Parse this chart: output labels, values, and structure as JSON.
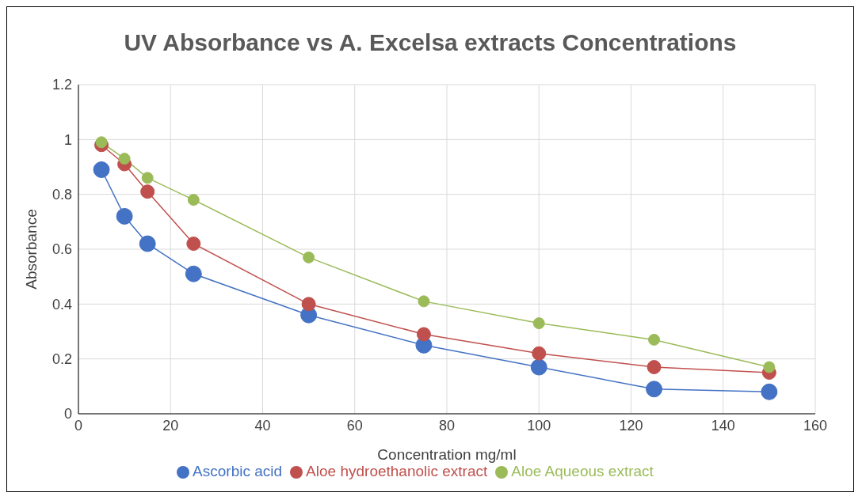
{
  "chart_data": {
    "type": "line",
    "title": "UV Absorbance vs A. Excelsa extracts Concentrations",
    "xlabel": "Concentration mg/ml",
    "ylabel": "Absorbance",
    "x": [
      5,
      10,
      15,
      25,
      50,
      75,
      100,
      125,
      150
    ],
    "series": [
      {
        "name": "Ascorbic acid",
        "color": "#4472c4",
        "values": [
          0.89,
          0.72,
          0.62,
          0.51,
          0.36,
          0.25,
          0.17,
          0.09,
          0.08
        ]
      },
      {
        "name": "Aloe hydroethanolic extract",
        "color": "#c0504d",
        "values": [
          0.98,
          0.91,
          0.81,
          0.62,
          0.4,
          0.29,
          0.22,
          0.17,
          0.15
        ]
      },
      {
        "name": "Aloe  Aqueous extract",
        "color": "#9bbb59",
        "values": [
          0.99,
          0.93,
          0.86,
          0.78,
          0.57,
          0.41,
          0.33,
          0.27,
          0.17
        ]
      }
    ],
    "xlim": [
      0,
      160
    ],
    "xticks": [
      0,
      20,
      40,
      60,
      80,
      100,
      120,
      140,
      160
    ],
    "ylim": [
      0,
      1.2
    ],
    "yticks": [
      0,
      0.2,
      0.4,
      0.6,
      0.8,
      1,
      1.2
    ],
    "grid": true,
    "legend": "bottom",
    "marker": "circle",
    "line_style": "solid"
  }
}
